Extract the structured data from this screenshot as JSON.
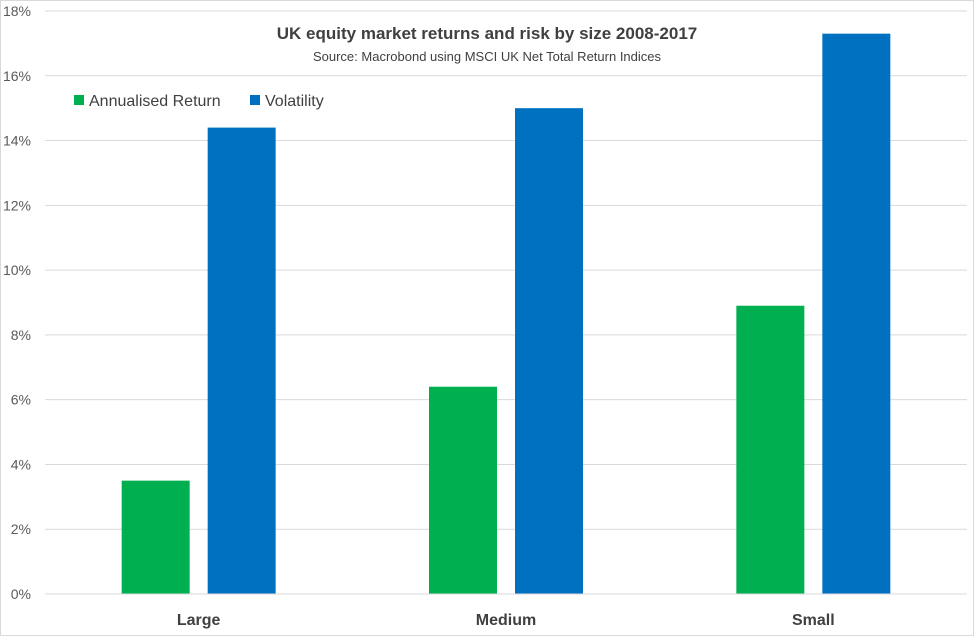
{
  "chart_data": {
    "type": "bar",
    "title": "UK equity market returns and risk by size 2008-2017",
    "subtitle": "Source: Macrobond using MSCI UK Net Total Return Indices",
    "categories": [
      "Large",
      "Medium",
      "Small"
    ],
    "series": [
      {
        "name": "Annualised Return",
        "color": "#00b050",
        "values": [
          3.5,
          6.4,
          8.9
        ]
      },
      {
        "name": "Volatility",
        "color": "#0070c0",
        "values": [
          14.4,
          15.0,
          17.3
        ]
      }
    ],
    "ylim": [
      0,
      18
    ],
    "yticks": [
      0,
      2,
      4,
      6,
      8,
      10,
      12,
      14,
      16,
      18
    ],
    "ytick_labels": [
      "0%",
      "2%",
      "4%",
      "6%",
      "8%",
      "10%",
      "12%",
      "14%",
      "16%",
      "18%"
    ],
    "xlabel": "",
    "ylabel": "",
    "grid": true,
    "legend": "top-left"
  }
}
